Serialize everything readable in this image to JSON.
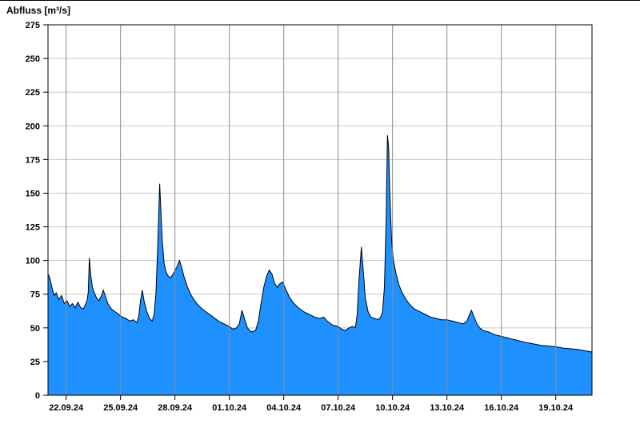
{
  "title": "Abfluss [m³/s]",
  "colors": {
    "fill": "#1e90ff",
    "line": "#000000",
    "grid_horizontal": "#c8c8c8",
    "grid_vertical": "#8c8c8c",
    "axis": "#000000",
    "background": "#ffffff"
  },
  "chart_data": {
    "type": "area",
    "title": "Abfluss [m³/s]",
    "ylabel": "Abfluss [m³/s]",
    "xlabel": "",
    "ylim": [
      0,
      275
    ],
    "y_ticks": [
      0,
      25,
      50,
      75,
      100,
      125,
      150,
      175,
      200,
      225,
      250,
      275
    ],
    "grid": true,
    "legend": "none",
    "x_domain_days": [
      0,
      30
    ],
    "x_ticks": [
      {
        "day": 1,
        "label": "22.09.24"
      },
      {
        "day": 4,
        "label": "25.09.24"
      },
      {
        "day": 7,
        "label": "28.09.24"
      },
      {
        "day": 10,
        "label": "01.10.24"
      },
      {
        "day": 13,
        "label": "04.10.24"
      },
      {
        "day": 16,
        "label": "07.10.24"
      },
      {
        "day": 19,
        "label": "10.10.24"
      },
      {
        "day": 22,
        "label": "13.10.24"
      },
      {
        "day": 25,
        "label": "16.10.24"
      },
      {
        "day": 28,
        "label": "19.10.24"
      }
    ],
    "series": [
      {
        "name": "Abfluss",
        "unit": "m³/s",
        "points": [
          [
            0.0,
            90
          ],
          [
            0.1,
            87
          ],
          [
            0.25,
            78
          ],
          [
            0.35,
            74
          ],
          [
            0.45,
            76
          ],
          [
            0.6,
            71
          ],
          [
            0.75,
            74
          ],
          [
            0.9,
            68
          ],
          [
            1.05,
            70
          ],
          [
            1.2,
            66
          ],
          [
            1.35,
            68
          ],
          [
            1.5,
            65
          ],
          [
            1.65,
            69
          ],
          [
            1.8,
            65
          ],
          [
            1.95,
            64
          ],
          [
            2.05,
            67
          ],
          [
            2.15,
            70
          ],
          [
            2.22,
            76
          ],
          [
            2.28,
            102
          ],
          [
            2.35,
            90
          ],
          [
            2.45,
            80
          ],
          [
            2.55,
            76
          ],
          [
            2.65,
            73
          ],
          [
            2.8,
            70
          ],
          [
            2.95,
            74
          ],
          [
            3.05,
            78
          ],
          [
            3.15,
            74
          ],
          [
            3.3,
            68
          ],
          [
            3.5,
            64
          ],
          [
            3.7,
            62
          ],
          [
            3.9,
            60
          ],
          [
            4.1,
            58
          ],
          [
            4.3,
            57
          ],
          [
            4.5,
            55
          ],
          [
            4.7,
            56
          ],
          [
            4.9,
            54
          ],
          [
            5.0,
            58
          ],
          [
            5.1,
            70
          ],
          [
            5.2,
            78
          ],
          [
            5.3,
            70
          ],
          [
            5.45,
            62
          ],
          [
            5.6,
            57
          ],
          [
            5.75,
            55
          ],
          [
            5.85,
            60
          ],
          [
            5.95,
            75
          ],
          [
            6.05,
            110
          ],
          [
            6.16,
            157
          ],
          [
            6.3,
            115
          ],
          [
            6.4,
            98
          ],
          [
            6.5,
            92
          ],
          [
            6.6,
            89
          ],
          [
            6.75,
            87
          ],
          [
            6.9,
            90
          ],
          [
            7.1,
            95
          ],
          [
            7.25,
            100
          ],
          [
            7.35,
            96
          ],
          [
            7.5,
            88
          ],
          [
            7.7,
            80
          ],
          [
            7.9,
            74
          ],
          [
            8.2,
            68
          ],
          [
            8.5,
            64
          ],
          [
            8.8,
            61
          ],
          [
            9.1,
            58
          ],
          [
            9.4,
            55
          ],
          [
            9.7,
            53
          ],
          [
            10.0,
            51
          ],
          [
            10.2,
            49
          ],
          [
            10.4,
            50
          ],
          [
            10.55,
            53
          ],
          [
            10.7,
            63
          ],
          [
            10.85,
            56
          ],
          [
            11.0,
            50
          ],
          [
            11.2,
            47
          ],
          [
            11.45,
            48
          ],
          [
            11.6,
            55
          ],
          [
            11.75,
            68
          ],
          [
            11.9,
            80
          ],
          [
            12.05,
            88
          ],
          [
            12.2,
            93
          ],
          [
            12.35,
            90
          ],
          [
            12.5,
            83
          ],
          [
            12.65,
            80
          ],
          [
            12.8,
            83
          ],
          [
            12.95,
            84
          ],
          [
            13.1,
            79
          ],
          [
            13.3,
            73
          ],
          [
            13.5,
            69
          ],
          [
            13.8,
            65
          ],
          [
            14.1,
            62
          ],
          [
            14.4,
            60
          ],
          [
            14.7,
            58
          ],
          [
            15.0,
            57
          ],
          [
            15.2,
            58
          ],
          [
            15.4,
            55
          ],
          [
            15.7,
            52
          ],
          [
            16.0,
            51
          ],
          [
            16.2,
            49
          ],
          [
            16.4,
            48
          ],
          [
            16.6,
            50
          ],
          [
            16.8,
            51
          ],
          [
            16.95,
            50
          ],
          [
            17.05,
            60
          ],
          [
            17.15,
            85
          ],
          [
            17.28,
            110
          ],
          [
            17.4,
            90
          ],
          [
            17.5,
            72
          ],
          [
            17.65,
            62
          ],
          [
            17.8,
            58
          ],
          [
            18.0,
            57
          ],
          [
            18.2,
            56
          ],
          [
            18.35,
            58
          ],
          [
            18.45,
            62
          ],
          [
            18.55,
            80
          ],
          [
            18.65,
            130
          ],
          [
            18.72,
            193
          ],
          [
            18.78,
            185
          ],
          [
            18.85,
            150
          ],
          [
            18.95,
            115
          ],
          [
            19.05,
            100
          ],
          [
            19.2,
            90
          ],
          [
            19.35,
            82
          ],
          [
            19.5,
            77
          ],
          [
            19.7,
            72
          ],
          [
            19.9,
            68
          ],
          [
            20.2,
            64
          ],
          [
            20.5,
            62
          ],
          [
            20.8,
            60
          ],
          [
            21.1,
            58
          ],
          [
            21.4,
            57
          ],
          [
            21.7,
            56
          ],
          [
            22.0,
            56
          ],
          [
            22.3,
            55
          ],
          [
            22.6,
            54
          ],
          [
            22.9,
            53
          ],
          [
            23.1,
            55
          ],
          [
            23.25,
            60
          ],
          [
            23.35,
            63
          ],
          [
            23.5,
            58
          ],
          [
            23.65,
            53
          ],
          [
            23.8,
            50
          ],
          [
            24.0,
            48
          ],
          [
            24.3,
            47
          ],
          [
            24.6,
            45
          ],
          [
            24.9,
            44
          ],
          [
            25.2,
            43
          ],
          [
            25.5,
            42
          ],
          [
            25.8,
            41
          ],
          [
            26.1,
            40
          ],
          [
            26.4,
            39
          ],
          [
            26.8,
            38
          ],
          [
            27.2,
            37
          ],
          [
            27.6,
            36.5
          ],
          [
            28.0,
            36
          ],
          [
            28.4,
            35
          ],
          [
            28.8,
            34.5
          ],
          [
            29.2,
            34
          ],
          [
            29.6,
            33
          ],
          [
            30.0,
            32
          ]
        ]
      }
    ]
  }
}
